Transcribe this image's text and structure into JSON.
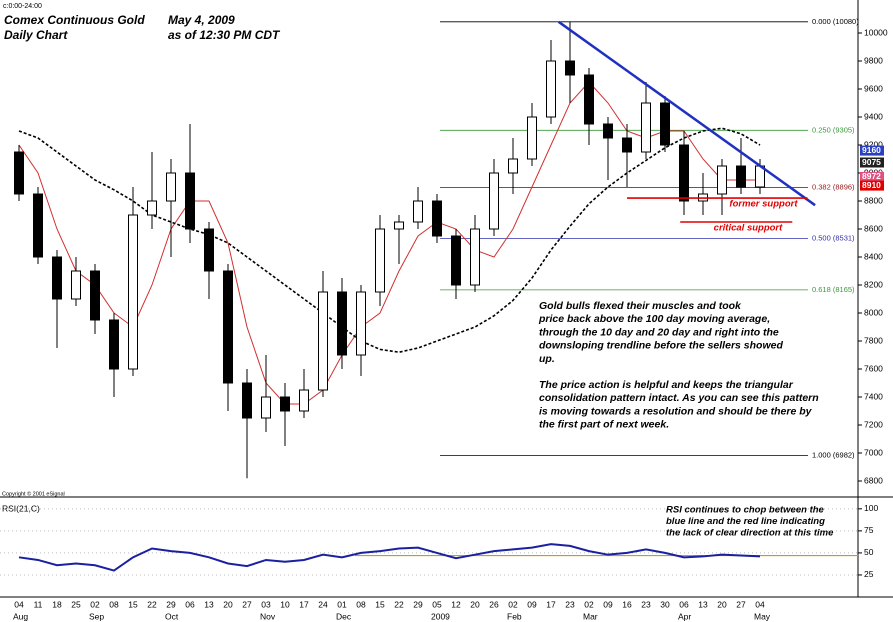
{
  "chart_data": {
    "type": "candlestick",
    "session": "c:0:00-24:00",
    "title": "Comex Continuous Gold",
    "date": "May 4, 2009",
    "subtitle": "Daily Chart",
    "as_of": "as of  12:30 PM CDT",
    "copyright": "Copyright © 2001 eSignal",
    "categories": [
      "04",
      "11",
      "18",
      "25",
      "02",
      "08",
      "15",
      "22",
      "29",
      "06",
      "13",
      "20",
      "27",
      "03",
      "10",
      "17",
      "24",
      "01",
      "08",
      "15",
      "22",
      "29",
      "05",
      "12",
      "20",
      "26",
      "02",
      "09",
      "17",
      "23",
      "02",
      "09",
      "16",
      "23",
      "30",
      "06",
      "13",
      "20",
      "27",
      "04"
    ],
    "months": [
      "Aug",
      null,
      null,
      null,
      "Sep",
      null,
      null,
      null,
      "Oct",
      null,
      null,
      null,
      null,
      "Nov",
      null,
      null,
      null,
      "Dec",
      null,
      null,
      null,
      null,
      "2009",
      null,
      null,
      null,
      "Feb",
      null,
      null,
      null,
      "Mar",
      null,
      null,
      null,
      null,
      "Apr",
      null,
      null,
      null,
      "May"
    ],
    "open": [
      9150,
      8850,
      8400,
      8100,
      8300,
      7950,
      7600,
      8700,
      8800,
      9000,
      8600,
      8300,
      7500,
      7250,
      7400,
      7300,
      7450,
      8150,
      7700,
      8150,
      8600,
      8650,
      8800,
      8550,
      8200,
      8600,
      9000,
      9100,
      9400,
      9800,
      9700,
      9350,
      9250,
      9150,
      9500,
      9200,
      8800,
      8850,
      9050,
      8900
    ],
    "high": [
      9200,
      8900,
      8450,
      8400,
      8350,
      8000,
      8900,
      9150,
      9100,
      9350,
      8650,
      8350,
      7600,
      7700,
      7500,
      7600,
      8300,
      8250,
      8200,
      8700,
      8700,
      8900,
      8850,
      8600,
      8700,
      9100,
      9250,
      9500,
      9950,
      10080,
      9750,
      9400,
      9350,
      9650,
      9550,
      9300,
      9000,
      9100,
      9250,
      9100
    ],
    "low": [
      8800,
      8350,
      7750,
      8050,
      7850,
      7400,
      7550,
      8600,
      8400,
      8500,
      8100,
      7300,
      6820,
      7150,
      7050,
      7250,
      7400,
      7600,
      7550,
      8050,
      8350,
      8600,
      8500,
      8100,
      8150,
      8550,
      8850,
      9050,
      9350,
      9500,
      9200,
      8950,
      8900,
      9100,
      9150,
      8700,
      8700,
      8700,
      8850,
      8850
    ],
    "close": [
      8850,
      8400,
      8100,
      8300,
      7950,
      7600,
      8700,
      8800,
      9000,
      8600,
      8300,
      7500,
      7250,
      7400,
      7300,
      7450,
      8150,
      7700,
      8150,
      8600,
      8650,
      8800,
      8550,
      8200,
      8600,
      9000,
      9100,
      9400,
      9800,
      9700,
      9350,
      9250,
      9150,
      9500,
      9200,
      8800,
      8850,
      9050,
      8900,
      9050
    ],
    "up_color": "#ffffff",
    "down_color": "#000000",
    "moving_averages": [
      {
        "color": "#d03030",
        "dash": false,
        "values": [
          9200,
          9000,
          8600,
          8300,
          8200,
          8000,
          7900,
          8200,
          8600,
          8800,
          8800,
          8500,
          7900,
          7500,
          7350,
          7350,
          7450,
          7700,
          7900,
          8000,
          8300,
          8550,
          8650,
          8600,
          8450,
          8400,
          8600,
          8900,
          9200,
          9500,
          9650,
          9500,
          9300,
          9250,
          9300,
          9300,
          9100,
          8950,
          8950,
          8950
        ]
      },
      {
        "color": "#000000",
        "dash": true,
        "values": [
          9300,
          9250,
          9150,
          9050,
          8950,
          8880,
          8800,
          8700,
          8650,
          8600,
          8560,
          8500,
          8400,
          8300,
          8200,
          8100,
          8000,
          7900,
          7800,
          7740,
          7720,
          7750,
          7800,
          7850,
          7900,
          7980,
          8090,
          8250,
          8450,
          8620,
          8780,
          8900,
          9000,
          9090,
          9180,
          9250,
          9300,
          9320,
          9280,
          9200
        ]
      }
    ],
    "ylim": [
      6700,
      10200
    ],
    "yticks": [
      6800,
      7000,
      7200,
      7400,
      7600,
      7800,
      8000,
      8200,
      8400,
      8600,
      8800,
      9000,
      9200,
      9400,
      9600,
      9800,
      10000
    ],
    "fib_levels": [
      {
        "label": "0.000 (10080)",
        "value": 10080,
        "color": "#000000"
      },
      {
        "label": "0.250 (9305)",
        "value": 9305,
        "color": "#3a9a3a"
      },
      {
        "label": "0.382 (8896)",
        "value": 8896,
        "color": "#9a2020"
      },
      {
        "label": "0.500 (8531)",
        "value": 8531,
        "color": "#3030b0"
      },
      {
        "label": "0.618 (8165)",
        "value": 8165,
        "color": "#3a9a3a"
      },
      {
        "label": "1.000 (6982)",
        "value": 6982,
        "color": "#000000"
      }
    ],
    "trendline": {
      "from": [
        28.4,
        10080
      ],
      "to": [
        41.9,
        8770
      ],
      "color": "#2030c0"
    },
    "supports": [
      {
        "label": "former support",
        "from": 32,
        "to": 41.5,
        "value": 8821,
        "color": "#e00000"
      },
      {
        "label": "critical support",
        "from": 34.8,
        "to": 40.7,
        "value": 8650,
        "color": "#e00000"
      }
    ],
    "price_tags": [
      {
        "value": 9160,
        "color": "#2a40c0"
      },
      {
        "value": 9075,
        "color": "#202020"
      },
      {
        "value": 8972,
        "color": "#e05080"
      },
      {
        "value": 8910,
        "color": "#e00000"
      }
    ],
    "annotation": [
      [
        "Gold bulls flexed their muscles and took",
        "price back above the 100 day moving average,",
        "through the 10 day and 20 day and right into the",
        "downsloping trendline before the sellers showed",
        "up."
      ],
      [
        "The price action is helpful and keeps the triangular",
        "consolidation pattern intact. As you can see this pattern",
        "is moving towards a resolution and should be there by",
        "the first part of next week."
      ]
    ],
    "rsi": {
      "label": "RSI(21,C)",
      "color": "#1a20a0",
      "values": [
        45,
        42,
        36,
        38,
        36,
        30,
        45,
        55,
        52,
        50,
        45,
        38,
        35,
        42,
        40,
        42,
        48,
        45,
        50,
        52,
        55,
        56,
        50,
        44,
        48,
        52,
        54,
        56,
        60,
        58,
        52,
        48,
        50,
        54,
        50,
        45,
        46,
        48,
        47,
        46
      ],
      "ylim": [
        0,
        110
      ],
      "yticks": [
        25,
        50,
        75,
        100
      ],
      "level": {
        "value": 47,
        "color": "#c8a000"
      },
      "annotation": [
        "RSI continues to chop between the",
        "blue line and the red line indicating",
        "the lack of clear direction at this time"
      ]
    }
  }
}
